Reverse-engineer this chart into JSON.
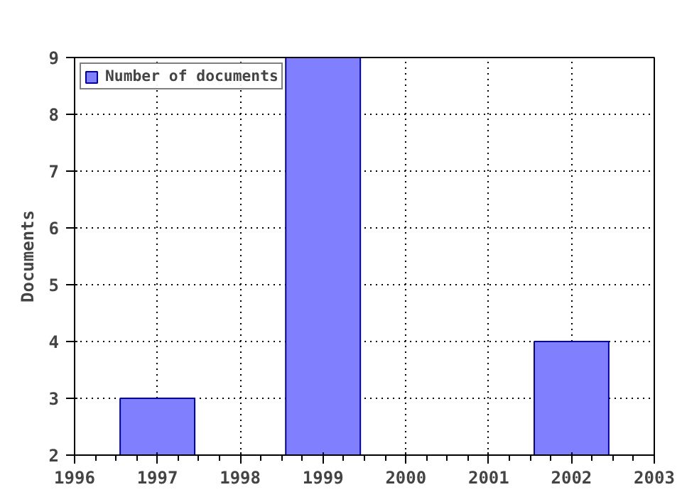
{
  "chart_data": {
    "type": "bar",
    "ylabel": "Documents",
    "x": [
      1997,
      1999,
      2002
    ],
    "series": [
      {
        "name": "Number of documents",
        "color": "#8080ff",
        "values": [
          3,
          9,
          4
        ]
      }
    ],
    "xlim": [
      1996,
      2003
    ],
    "xticks": [
      1996,
      1997,
      1998,
      1999,
      2000,
      2001,
      2002,
      2003
    ],
    "ylim": [
      2,
      9
    ],
    "yticks": [
      2,
      3,
      4,
      5,
      6,
      7,
      8,
      9
    ],
    "grid": true,
    "legend": "top left"
  }
}
